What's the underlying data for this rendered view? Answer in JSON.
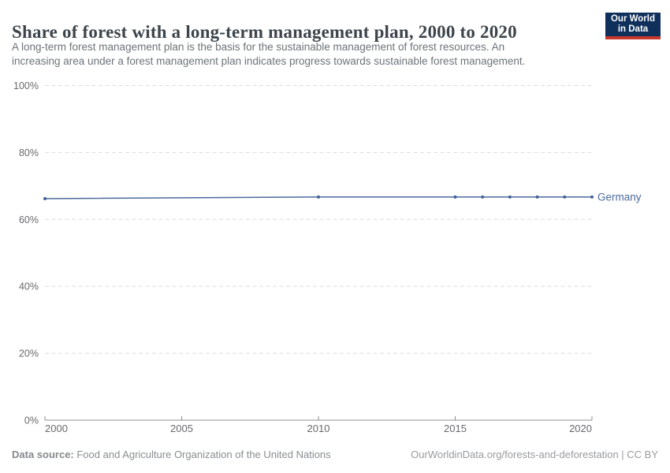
{
  "header": {
    "title": "Share of forest with a long-term management plan, 2000 to 2020",
    "subtitle_line1": "A long-term forest management plan is the basis for the sustainable management of forest resources. An",
    "subtitle_line2": "increasing area under a forest management plan indicates progress towards sustainable forest management.",
    "logo": {
      "line1": "Our World",
      "line2": "in Data"
    }
  },
  "chart_data": {
    "type": "line",
    "title": "Share of forest with a long-term management plan, 2000 to 2020",
    "xlabel": "",
    "ylabel": "",
    "xlim": [
      2000,
      2020
    ],
    "ylim": [
      0,
      100
    ],
    "x_ticks": [
      2000,
      2005,
      2010,
      2015,
      2020
    ],
    "y_ticks": [
      0,
      20,
      40,
      60,
      80,
      100
    ],
    "y_tick_suffix": "%",
    "grid": "horizontal-dashed",
    "legend_position": "right-of-line-label",
    "series": [
      {
        "name": "Germany",
        "color": "#4c6a9c",
        "points": [
          {
            "x": 2000,
            "y": 66.2
          },
          {
            "x": 2010,
            "y": 66.7
          },
          {
            "x": 2015,
            "y": 66.7
          },
          {
            "x": 2016,
            "y": 66.7
          },
          {
            "x": 2017,
            "y": 66.7
          },
          {
            "x": 2018,
            "y": 66.7
          },
          {
            "x": 2019,
            "y": 66.7
          },
          {
            "x": 2020,
            "y": 66.7
          }
        ]
      }
    ]
  },
  "footer": {
    "datasource_label": "Data source:",
    "datasource_value": " Food and Agriculture Organization of the United Nations",
    "credit": "OurWorldinData.org/forests-and-deforestation | CC BY"
  },
  "colors": {
    "line": "#4c6a9c",
    "point": "#41619b",
    "entity_label": "#4c6a9c",
    "grid": "#dcdcdc",
    "axis": "#8f8f8f",
    "tick_text": "#68696b",
    "title_text": "#3d454c",
    "subtitle_text": "#6d737a",
    "logo_bg": "#10305c",
    "logo_accent": "#c8372d"
  }
}
